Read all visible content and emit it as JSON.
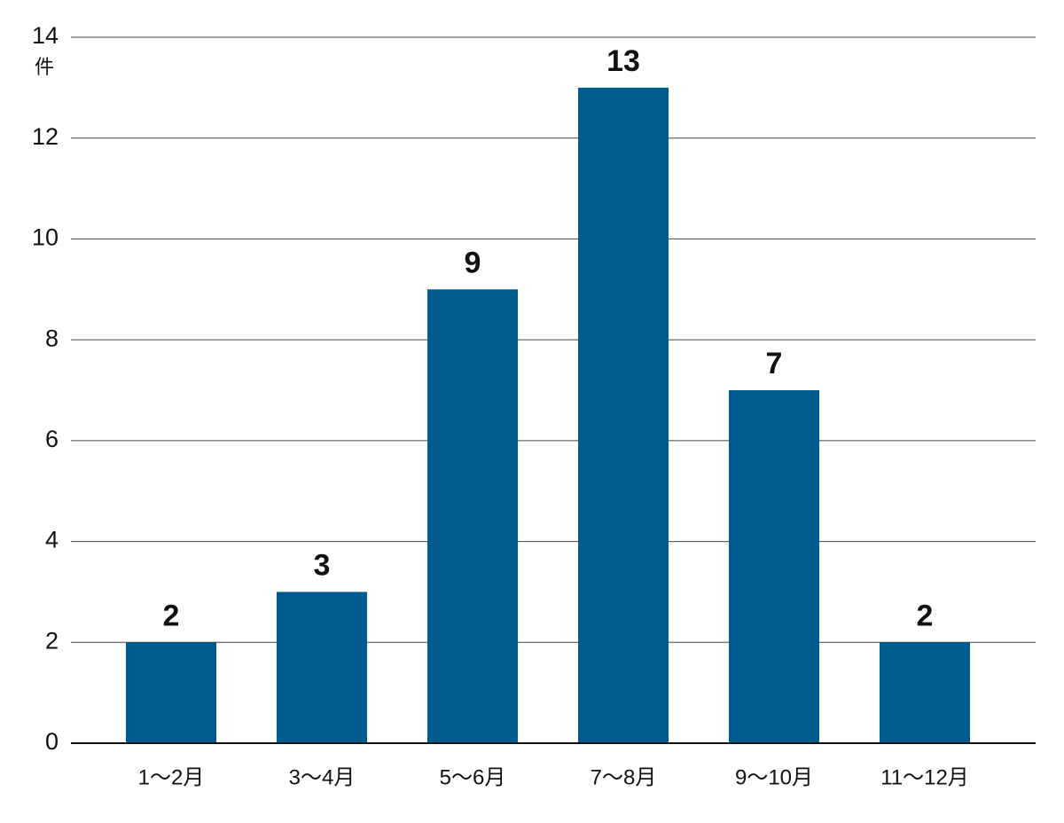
{
  "chart_data": {
    "type": "bar",
    "y_unit": "件",
    "categories": [
      "1～2月",
      "3～4月",
      "5～6月",
      "7～8月",
      "9～10月",
      "11～12月"
    ],
    "values": [
      2,
      3,
      9,
      13,
      7,
      2
    ],
    "color": "#005b8e",
    "ylim": [
      0,
      14
    ],
    "yticks": [
      0,
      2,
      4,
      6,
      8,
      10,
      12,
      14
    ],
    "grid": true
  }
}
